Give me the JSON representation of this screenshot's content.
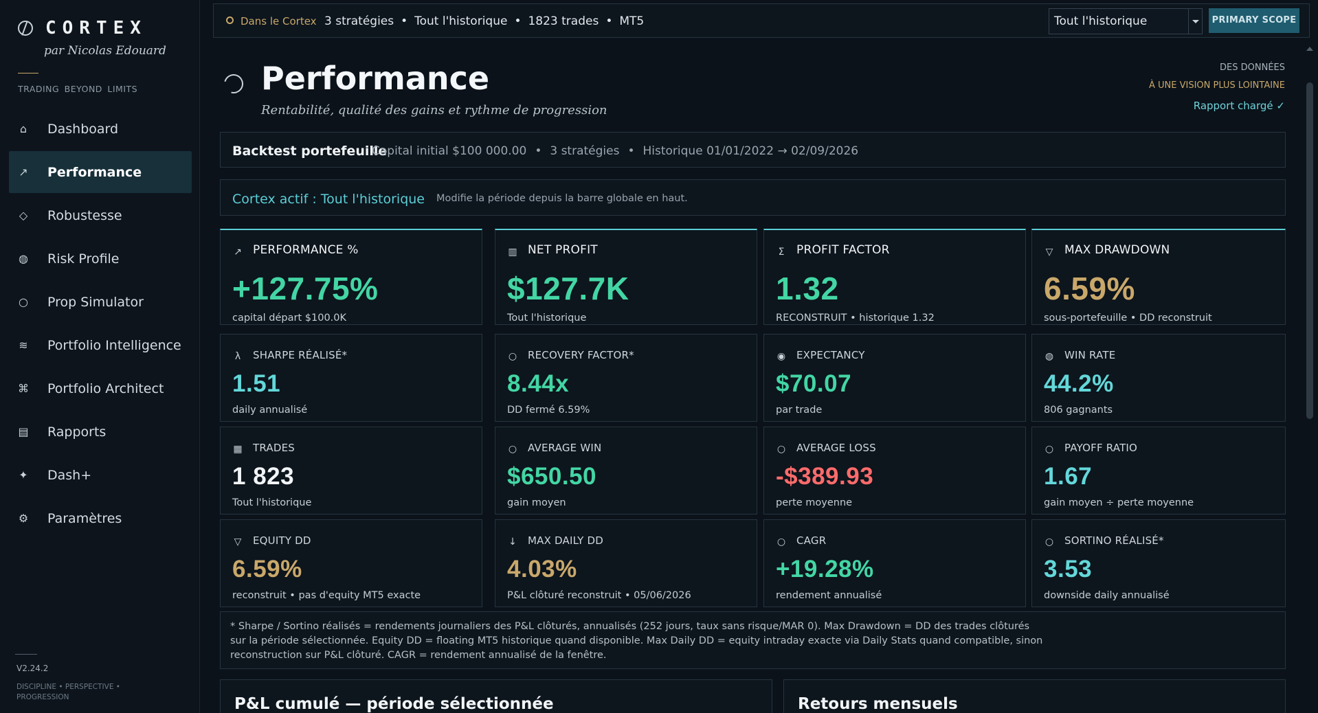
{
  "brand": {
    "name": "CORTEX",
    "subtitle": "par Nicolas Edouard",
    "tagline": "TRADING  BEYOND  LIMITS"
  },
  "sidebar": {
    "items": [
      {
        "label": "Dashboard",
        "icon": "⌂",
        "icon_name": "home-icon",
        "active": false
      },
      {
        "label": "Performance",
        "icon": "↗",
        "icon_name": "trend-up-icon",
        "active": true
      },
      {
        "label": "Robustesse",
        "icon": "◇",
        "icon_name": "diamond-icon",
        "active": false
      },
      {
        "label": "Risk Profile",
        "icon": "◍",
        "icon_name": "risk-icon",
        "active": false
      },
      {
        "label": "Prop Simulator",
        "icon": "○",
        "icon_name": "circle-icon",
        "active": false
      },
      {
        "label": "Portfolio Intelligence",
        "icon": "≋",
        "icon_name": "waves-icon",
        "active": false
      },
      {
        "label": "Portfolio Architect",
        "icon": "⌘",
        "icon_name": "command-icon",
        "active": false
      },
      {
        "label": "Rapports",
        "icon": "▤",
        "icon_name": "report-icon",
        "active": false
      },
      {
        "label": "Dash+",
        "icon": "✦",
        "icon_name": "sparkle-icon",
        "active": false
      },
      {
        "label": "Paramètres",
        "icon": "⚙",
        "icon_name": "gear-icon",
        "active": false
      }
    ],
    "version": "V2.24.2",
    "footer": "DISCIPLINE  •  PERSPECTIVE  •  PROGRESSION"
  },
  "topbar": {
    "scope_label": "Dans le Cortex",
    "info": [
      "3 stratégies",
      "Tout l'historique",
      "1823 trades",
      "MT5"
    ],
    "select_value": "Tout l'historique",
    "primary_button": "PRIMARY SCOPE"
  },
  "header": {
    "title": "Performance",
    "subtitle": "Rentabilité, qualité des gains et rythme de progression",
    "right_line1": "DES DONNÉES",
    "right_line2": "À UNE VISION PLUS LOINTAINE",
    "right_status": "Rapport chargé  ✓"
  },
  "backtest_bar": {
    "title": "Backtest portefeuille",
    "info": [
      "Capital initial $100 000.00",
      "3 stratégies",
      "Historique 01/01/2022 → 02/09/2026"
    ]
  },
  "cortex_bar": {
    "title": "Cortex actif : Tout l'historique",
    "note": "Modifie la période depuis la barre globale en haut."
  },
  "metrics": [
    {
      "label": "PERFORMANCE %",
      "icon": "↗",
      "icon_name": "trend-up-icon",
      "value": "+127.75%",
      "sub": "capital départ $100.0K",
      "color": "green",
      "primary": true
    },
    {
      "label": "NET PROFIT",
      "icon": "▥",
      "icon_name": "columns-icon",
      "value": "$127.7K",
      "sub": "Tout l'historique",
      "color": "green",
      "primary": true
    },
    {
      "label": "PROFIT FACTOR",
      "icon": "Σ",
      "icon_name": "sigma-icon",
      "value": "1.32",
      "sub": "RECONSTRUIT • historique 1.32",
      "color": "green",
      "primary": true
    },
    {
      "label": "MAX DRAWDOWN",
      "icon": "▽",
      "icon_name": "triangle-down-icon",
      "value": "6.59%",
      "sub": "sous-portefeuille • DD reconstruit",
      "color": "gold",
      "primary": true
    },
    {
      "label": "SHARPE RÉALISÉ*",
      "icon": "λ",
      "icon_name": "lambda-icon",
      "value": "1.51",
      "sub": "daily annualisé",
      "color": "teal",
      "primary": false
    },
    {
      "label": "RECOVERY FACTOR*",
      "icon": "○",
      "icon_name": "circle-icon",
      "value": "8.44x",
      "sub": "DD fermé 6.59%",
      "color": "green",
      "primary": false
    },
    {
      "label": "EXPECTANCY",
      "icon": "◉",
      "icon_name": "target-icon",
      "value": "$70.07",
      "sub": "par trade",
      "color": "green",
      "primary": false
    },
    {
      "label": "WIN RATE",
      "icon": "◍",
      "icon_name": "gauge-icon",
      "value": "44.2%",
      "sub": "806 gagnants",
      "color": "teal",
      "primary": false
    },
    {
      "label": "TRADES",
      "icon": "▦",
      "icon_name": "grid-icon",
      "value": "1 823",
      "sub": "Tout l'historique",
      "color": "white",
      "primary": false
    },
    {
      "label": "AVERAGE WIN",
      "icon": "○",
      "icon_name": "circle-icon",
      "value": "$650.50",
      "sub": "gain moyen",
      "color": "green",
      "primary": false
    },
    {
      "label": "AVERAGE LOSS",
      "icon": "○",
      "icon_name": "circle-icon",
      "value": "-$389.93",
      "sub": "perte moyenne",
      "color": "red",
      "primary": false
    },
    {
      "label": "PAYOFF RATIO",
      "icon": "○",
      "icon_name": "circle-icon",
      "value": "1.67",
      "sub": "gain moyen ÷ perte moyenne",
      "color": "teal",
      "primary": false
    },
    {
      "label": "EQUITY DD",
      "icon": "▽",
      "icon_name": "triangle-down-icon",
      "value": "6.59%",
      "sub": "reconstruit • pas d'equity MT5 exacte",
      "color": "gold",
      "primary": false
    },
    {
      "label": "MAX DAILY DD",
      "icon": "↓",
      "icon_name": "arrow-down-icon",
      "value": "4.03%",
      "sub": "P&L clôturé reconstruit • 05/06/2026",
      "color": "gold",
      "primary": false
    },
    {
      "label": "CAGR",
      "icon": "○",
      "icon_name": "circle-icon",
      "value": "+19.28%",
      "sub": "rendement annualisé",
      "color": "green",
      "primary": false
    },
    {
      "label": "SORTINO RÉALISÉ*",
      "icon": "○",
      "icon_name": "circle-icon",
      "value": "3.53",
      "sub": "downside daily annualisé",
      "color": "teal",
      "primary": false
    }
  ],
  "footnote": [
    "* Sharpe / Sortino réalisés = rendements journaliers des P&L clôturés, annualisés (252 jours, taux sans risque/MAR 0). Max Drawdown = DD des trades clôturés",
    "sur la période sélectionnée. Equity DD = floating MT5 historique quand disponible. Max Daily DD = equity intraday exacte via Daily Stats quand compatible, sinon",
    "reconstruction sur P&L clôturé. CAGR = rendement annualisé de la fenêtre."
  ],
  "sections": {
    "pnl_title": "P&L cumulé — période sélectionnée",
    "monthly_title": "Retours mensuels"
  },
  "colors": {
    "green": "#43d6a4",
    "gold": "#c9a86a",
    "red": "#ff6b6b",
    "teal": "#63d7d9",
    "accent": "#5ccfd6"
  }
}
